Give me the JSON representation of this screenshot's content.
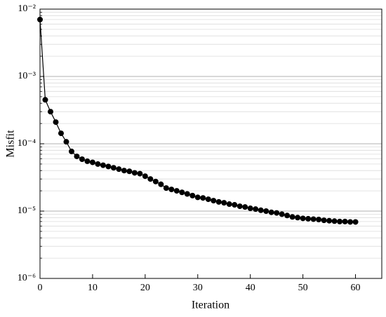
{
  "chart_data": {
    "type": "line",
    "xlabel": "Iteration",
    "ylabel": "Misfit",
    "x": [
      0,
      1,
      2,
      3,
      4,
      5,
      6,
      7,
      8,
      9,
      10,
      11,
      12,
      13,
      14,
      15,
      16,
      17,
      18,
      19,
      20,
      21,
      22,
      23,
      24,
      25,
      26,
      27,
      28,
      29,
      30,
      31,
      32,
      33,
      34,
      35,
      36,
      37,
      38,
      39,
      40,
      41,
      42,
      43,
      44,
      45,
      46,
      47,
      48,
      49,
      50,
      51,
      52,
      53,
      54,
      55,
      56,
      57,
      58,
      59,
      60
    ],
    "series": [
      {
        "color": "#000000",
        "values": [
          0.007,
          0.00045,
          0.0003,
          0.00021,
          0.000143,
          0.000107,
          7.7e-05,
          6.5e-05,
          5.9e-05,
          5.5e-05,
          5.3e-05,
          5e-05,
          4.8e-05,
          4.6e-05,
          4.4e-05,
          4.2e-05,
          4e-05,
          3.9e-05,
          3.7e-05,
          3.6e-05,
          3.3e-05,
          3e-05,
          2.75e-05,
          2.5e-05,
          2.2e-05,
          2.1e-05,
          2e-05,
          1.9e-05,
          1.8e-05,
          1.7e-05,
          1.6e-05,
          1.57e-05,
          1.5e-05,
          1.43e-05,
          1.37e-05,
          1.33e-05,
          1.27e-05,
          1.24e-05,
          1.18e-05,
          1.15e-05,
          1.1e-05,
          1.07e-05,
          1.03e-05,
          1e-05,
          9.6e-06,
          9.4e-06,
          9e-06,
          8.6e-06,
          8.2e-06,
          8e-06,
          7.8e-06,
          7.7e-06,
          7.6e-06,
          7.5e-06,
          7.3e-06,
          7.2e-06,
          7.1e-06,
          7e-06,
          7e-06,
          6.9e-06,
          6.9e-06
        ]
      }
    ],
    "xlim": [
      0,
      65
    ],
    "xticks": [
      0,
      10,
      20,
      30,
      40,
      50,
      60
    ],
    "ylim": [
      1e-06,
      0.01
    ],
    "ylog": true,
    "yticks": [
      {
        "value": 1e-06,
        "label": "10⁻⁶"
      },
      {
        "value": 1e-05,
        "label": "10⁻⁵"
      },
      {
        "value": 0.0001,
        "label": "10⁻⁴"
      },
      {
        "value": 0.001,
        "label": "10⁻³"
      },
      {
        "value": 0.01,
        "label": "10⁻²"
      }
    ],
    "grid": true,
    "minor_grid": true
  }
}
